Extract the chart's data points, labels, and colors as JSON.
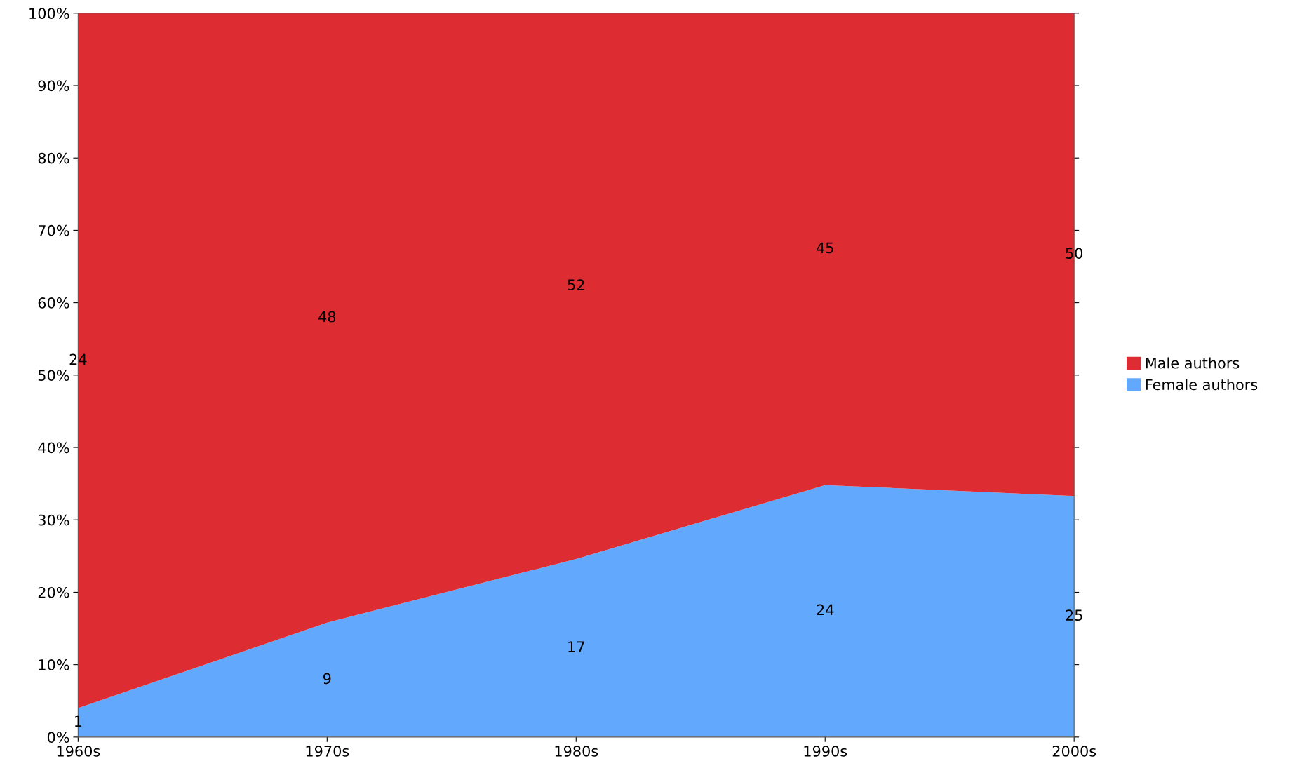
{
  "chart_data": {
    "type": "area",
    "stacked": true,
    "categories": [
      "1960s",
      "1970s",
      "1980s",
      "1990s",
      "2000s"
    ],
    "series": [
      {
        "name": "Female authors",
        "color": "#62a9fd",
        "values": [
          4.0,
          15.8,
          24.6,
          34.8,
          33.3
        ]
      },
      {
        "name": "Male authors",
        "color": "#dd2c32",
        "values": [
          96.0,
          84.2,
          75.4,
          65.2,
          66.7
        ]
      }
    ],
    "annotations": [
      "1",
      "9",
      "17",
      "24",
      "25",
      "24",
      "48",
      "52",
      "45",
      "50"
    ],
    "ylim": [
      0,
      100
    ],
    "yticks": [
      {
        "value": 0,
        "label": "0%"
      },
      {
        "value": 10,
        "label": "10%"
      },
      {
        "value": 20,
        "label": "20%"
      },
      {
        "value": 30,
        "label": "30%"
      },
      {
        "value": 40,
        "label": "40%"
      },
      {
        "value": 50,
        "label": "50%"
      },
      {
        "value": 60,
        "label": "60%"
      },
      {
        "value": 70,
        "label": "70%"
      },
      {
        "value": 80,
        "label": "80%"
      },
      {
        "value": 90,
        "label": "90%"
      },
      {
        "value": 100,
        "label": "100%"
      }
    ],
    "grid": false,
    "legend": "right"
  }
}
